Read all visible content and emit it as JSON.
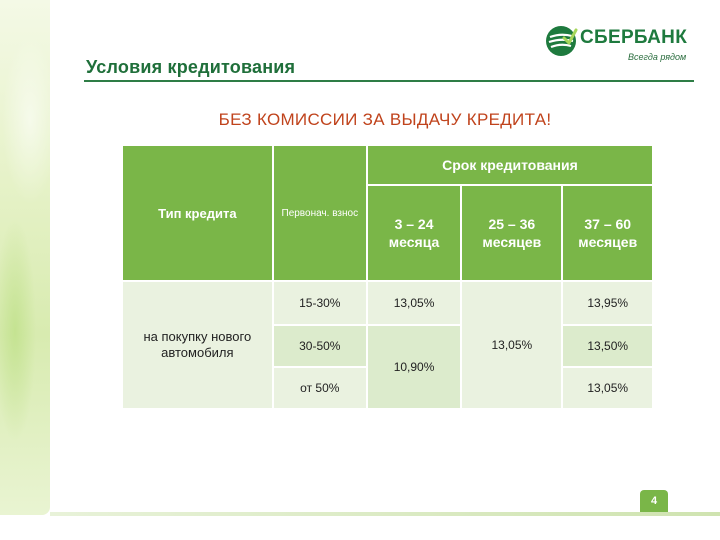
{
  "slide": {
    "title": "Условия кредитования",
    "subtitle": "БЕЗ КОМИССИИ ЗА ВЫДАЧУ КРЕДИТА!",
    "page_number": "4"
  },
  "logo": {
    "name": "СБЕРБАНК",
    "slogan": "Всегда рядом",
    "color": "#1e7a3e"
  },
  "table": {
    "header": {
      "type": "Тип кредита",
      "down_payment": "Первонач. взнос",
      "term_group": "Срок кредитования",
      "terms": [
        "3 – 24 месяца",
        "25 – 36 месяцев",
        "37 – 60 месяцев"
      ]
    },
    "row_label": "на покупку нового автомобиля",
    "rows": [
      {
        "down": "15-30%",
        "t1": "13,05%",
        "t3": "13,95%"
      },
      {
        "down": "30-50%",
        "t3": "13,50%"
      },
      {
        "down": "от 50%",
        "t3": "13,05%"
      }
    ],
    "merged": {
      "t1_rows_2_3": "10,90%",
      "t2_all": "13,05%"
    }
  },
  "colors": {
    "header_green": "#7ab648",
    "title_green": "#1f6f3a",
    "accent_red": "#c0431c"
  }
}
